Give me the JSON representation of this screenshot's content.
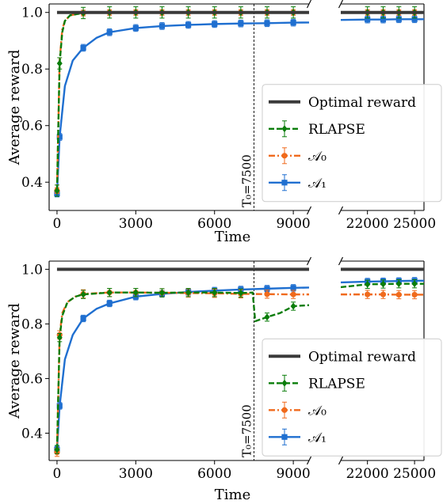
{
  "colors": {
    "optimal": "#3a3a3a",
    "rlapse": "#0a7d0a",
    "a0": "#f06a1c",
    "a1": "#1f6fd0"
  },
  "chart_data": [
    {
      "type": "line",
      "xlabel": "Time",
      "ylabel": "Average reward",
      "ylim": [
        0.3,
        1.03
      ],
      "broken_x_axis": true,
      "x_segments": [
        [
          -300,
          9600
        ],
        [
          20300,
          25600
        ]
      ],
      "yticks": [
        0.4,
        0.6,
        0.8,
        1.0
      ],
      "ytick_labels": [
        "0.4",
        "0.6",
        "0.8",
        "1.0"
      ],
      "xticks_left": [
        0,
        3000,
        6000,
        9000
      ],
      "xtick_labels_left": [
        "0",
        "3000",
        "6000",
        "9000"
      ],
      "xticks_right": [
        22000,
        25000
      ],
      "xtick_labels_right": [
        "22000",
        "25000"
      ],
      "vline": {
        "x": 7500,
        "label": "T₀=7500"
      },
      "legend": {
        "position": "lower-right",
        "entries": [
          "Optimal reward",
          "RLAPSE",
          "𝒜₀",
          "𝒜₁"
        ]
      },
      "series": [
        {
          "key": "optimal",
          "name": "Optimal reward",
          "x": [
            0,
            25000
          ],
          "y": [
            1.0,
            1.0
          ]
        },
        {
          "key": "rlapse",
          "name": "RLAPSE",
          "x": [
            0,
            100,
            200,
            300,
            500,
            1000,
            2000,
            3000,
            4000,
            5000,
            6000,
            7000,
            7500,
            8000,
            9000,
            22000,
            23000,
            24000,
            25000
          ],
          "y": [
            0.37,
            0.82,
            0.93,
            0.97,
            0.99,
            0.998,
            1.0,
            1.0,
            1.0,
            1.0,
            1.0,
            1.0,
            1.0,
            1.0,
            1.0,
            1.0,
            1.0,
            1.0,
            1.0
          ],
          "markers_x": [
            0,
            100,
            1000,
            2000,
            3000,
            4000,
            5000,
            6000,
            7000,
            8000,
            9000,
            22000,
            23000,
            24000,
            25000
          ],
          "err": 0.02
        },
        {
          "key": "a0",
          "name": "𝒜₀",
          "x": [
            0,
            100,
            200,
            300,
            500,
            1000,
            2000,
            3000,
            4000,
            5000,
            6000,
            7000,
            8000,
            9000,
            22000,
            23000,
            24000,
            25000
          ],
          "y": [
            0.37,
            0.83,
            0.94,
            0.97,
            0.99,
            0.998,
            1.0,
            1.0,
            1.0,
            1.0,
            1.0,
            1.0,
            1.0,
            1.0,
            1.0,
            1.0,
            1.0,
            1.0
          ],
          "markers_x": [
            0,
            1000,
            2000,
            3000,
            4000,
            5000,
            6000,
            7000,
            8000,
            9000,
            22000,
            23000,
            24000,
            25000
          ],
          "err": 0.01
        },
        {
          "key": "a1",
          "name": "𝒜₁",
          "x": [
            0,
            100,
            300,
            600,
            1000,
            1500,
            2000,
            3000,
            4000,
            5000,
            6000,
            7000,
            8000,
            9000,
            22000,
            23000,
            24000,
            25000
          ],
          "y": [
            0.36,
            0.56,
            0.74,
            0.83,
            0.875,
            0.91,
            0.93,
            0.945,
            0.952,
            0.956,
            0.959,
            0.961,
            0.962,
            0.964,
            0.975,
            0.975,
            0.976,
            0.976
          ],
          "markers_x": [
            0,
            100,
            1000,
            2000,
            3000,
            4000,
            5000,
            6000,
            7000,
            8000,
            9000,
            22000,
            23000,
            24000,
            25000
          ],
          "err": 0.012
        }
      ]
    },
    {
      "type": "line",
      "xlabel": "Time",
      "ylabel": "Average reward",
      "ylim": [
        0.3,
        1.03
      ],
      "broken_x_axis": true,
      "x_segments": [
        [
          -300,
          9600
        ],
        [
          20300,
          25600
        ]
      ],
      "yticks": [
        0.4,
        0.6,
        0.8,
        1.0
      ],
      "ytick_labels": [
        "0.4",
        "0.6",
        "0.8",
        "1.0"
      ],
      "xticks_left": [
        0,
        3000,
        6000,
        9000
      ],
      "xtick_labels_left": [
        "0",
        "3000",
        "6000",
        "9000"
      ],
      "xticks_right": [
        22000,
        25000
      ],
      "xtick_labels_right": [
        "22000",
        "25000"
      ],
      "vline": {
        "x": 7500,
        "label": "T₀=7500"
      },
      "legend": {
        "position": "lower-right",
        "entries": [
          "Optimal reward",
          "RLAPSE",
          "𝒜₀",
          "𝒜₁"
        ]
      },
      "series": [
        {
          "key": "optimal",
          "name": "Optimal reward",
          "x": [
            0,
            25000
          ],
          "y": [
            1.0,
            1.0
          ]
        },
        {
          "key": "rlapse",
          "name": "RLAPSE",
          "x": [
            0,
            100,
            200,
            400,
            700,
            1000,
            2000,
            3000,
            4000,
            5000,
            6000,
            7000,
            7450,
            7550,
            7700,
            8000,
            8500,
            9000,
            22000,
            23000,
            24000,
            25000
          ],
          "y": [
            0.34,
            0.75,
            0.83,
            0.88,
            0.9,
            0.908,
            0.915,
            0.915,
            0.914,
            0.915,
            0.915,
            0.913,
            0.915,
            0.81,
            0.815,
            0.825,
            0.84,
            0.865,
            0.945,
            0.946,
            0.947,
            0.947
          ],
          "markers_x": [
            0,
            100,
            1000,
            2000,
            3000,
            4000,
            5000,
            6000,
            7000,
            8000,
            9000,
            22000,
            23000,
            24000,
            25000
          ],
          "err": 0.015
        },
        {
          "key": "a0",
          "name": "𝒜₀",
          "x": [
            0,
            100,
            200,
            400,
            700,
            1000,
            2000,
            3000,
            4000,
            5000,
            6000,
            7000,
            8000,
            9000,
            22000,
            23000,
            24000,
            25000
          ],
          "y": [
            0.33,
            0.76,
            0.84,
            0.88,
            0.9,
            0.91,
            0.915,
            0.915,
            0.914,
            0.913,
            0.912,
            0.91,
            0.909,
            0.908,
            0.908,
            0.908,
            0.907,
            0.907
          ],
          "markers_x": [
            0,
            100,
            1000,
            2000,
            3000,
            4000,
            5000,
            6000,
            7000,
            8000,
            9000,
            22000,
            23000,
            24000,
            25000
          ],
          "err": 0.015
        },
        {
          "key": "a1",
          "name": "𝒜₁",
          "x": [
            0,
            100,
            300,
            600,
            1000,
            1500,
            2000,
            3000,
            4000,
            5000,
            6000,
            7000,
            8000,
            9000,
            22000,
            23000,
            24000,
            25000
          ],
          "y": [
            0.34,
            0.5,
            0.67,
            0.76,
            0.82,
            0.855,
            0.875,
            0.9,
            0.91,
            0.917,
            0.922,
            0.926,
            0.929,
            0.932,
            0.955,
            0.956,
            0.957,
            0.958
          ],
          "markers_x": [
            0,
            100,
            1000,
            2000,
            3000,
            4000,
            5000,
            6000,
            7000,
            8000,
            9000,
            22000,
            23000,
            24000,
            25000
          ],
          "err": 0.012
        }
      ]
    }
  ]
}
